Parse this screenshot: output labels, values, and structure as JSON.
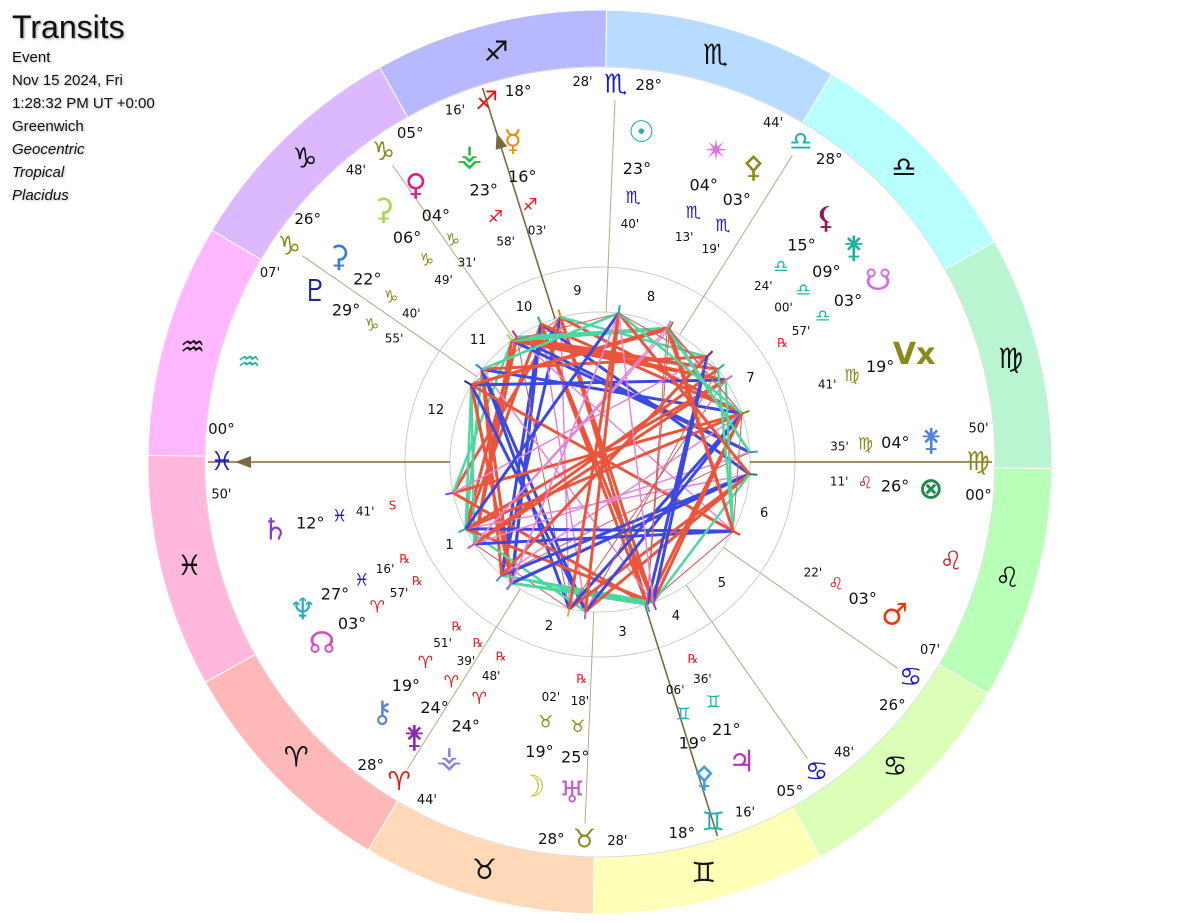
{
  "header": {
    "title": "Transits",
    "lines": [
      "Event",
      "Nov 15 2024, Fri",
      "1:28:32 PM UT +0:00",
      "Greenwich"
    ],
    "italic_lines": [
      "Geocentric",
      "Tropical",
      "Placidus"
    ]
  },
  "signs": [
    {
      "glyph": "♈︎",
      "band_color": "#ffb8b8",
      "color": "#e01818"
    },
    {
      "glyph": "♉︎",
      "band_color": "#ffd9b8",
      "color": "#8a8a1a"
    },
    {
      "glyph": "♊︎",
      "band_color": "#ffffb8",
      "color": "#20b0b0"
    },
    {
      "glyph": "♋︎",
      "band_color": "#dcffb8",
      "color": "#1a1ad0"
    },
    {
      "glyph": "♌︎",
      "band_color": "#b8ffb8",
      "color": "#e01818"
    },
    {
      "glyph": "♍︎",
      "band_color": "#b8f5d0",
      "color": "#8a8a1a"
    },
    {
      "glyph": "♎︎",
      "band_color": "#b8ffff",
      "color": "#20b0b0"
    },
    {
      "glyph": "♏︎",
      "band_color": "#b8dcff",
      "color": "#1a1ad0"
    },
    {
      "glyph": "♐︎",
      "band_color": "#b8b8ff",
      "color": "#e01818"
    },
    {
      "glyph": "♑︎",
      "band_color": "#dcb8ff",
      "color": "#8a8a1a"
    },
    {
      "glyph": "♒︎",
      "band_color": "#ffb8ff",
      "color": "#20b0b0"
    },
    {
      "glyph": "♓︎",
      "band_color": "#ffb8dc",
      "color": "#1a1ad0"
    }
  ],
  "houses": {
    "numbers": [
      "1",
      "2",
      "3",
      "4",
      "5",
      "6",
      "7",
      "8",
      "9",
      "10",
      "11",
      "12"
    ],
    "cusps": [
      {
        "deg": "00°",
        "sign": "♓︎",
        "min": "50'"
      },
      {
        "deg": "28°",
        "sign": "♈︎",
        "min": "44'"
      },
      {
        "deg": "28°",
        "sign": "♉︎",
        "min": "28'"
      },
      {
        "deg": "18°",
        "sign": "♊︎",
        "min": "16'"
      },
      {
        "deg": "05°",
        "sign": "♋︎",
        "min": "48'"
      },
      {
        "deg": "26°",
        "sign": "♋︎",
        "min": "07'"
      },
      {
        "deg": "00°",
        "sign": "♍︎",
        "min": "50'"
      },
      {
        "deg": "28°",
        "sign": "♎︎",
        "min": "44'"
      },
      {
        "deg": "28°",
        "sign": "♏︎",
        "min": "28'"
      },
      {
        "deg": "18°",
        "sign": "♐︎",
        "min": "16'"
      },
      {
        "deg": "05°",
        "sign": "♑︎",
        "min": "48'"
      },
      {
        "deg": "26°",
        "sign": "♑︎",
        "min": "07'"
      }
    ]
  },
  "intercepted": [
    {
      "glyph": "♒︎",
      "color": "#20b0b0"
    },
    {
      "glyph": "♌︎",
      "color": "#e01818"
    }
  ],
  "bodies": [
    {
      "glyph": "☿︎",
      "color": "#f08c00",
      "deg": "16°",
      "sign": "♐︎",
      "min": "03'"
    },
    {
      "glyph": "⚶︎",
      "color": "#20c040",
      "deg": "23°",
      "sign": "♐︎",
      "min": "58'"
    },
    {
      "glyph": "♀︎",
      "color": "#e0208a",
      "deg": "04°",
      "sign": "♑︎",
      "min": "31'"
    },
    {
      "glyph": "⚳︎",
      "color": "#a8d848",
      "deg": "06°",
      "sign": "♑︎",
      "min": "49'"
    },
    {
      "glyph": "⚳︎",
      "color": "#3a7ad8",
      "deg": "22°",
      "sign": "♑︎",
      "min": "40'"
    },
    {
      "glyph": "♇︎",
      "color": "#1a2a8a",
      "deg": "29°",
      "sign": "♑︎",
      "min": "55'"
    },
    {
      "glyph": "♄︎",
      "color": "#8a3ad8",
      "deg": "12°",
      "sign": "♓︎",
      "min": "41'",
      "station": "S"
    },
    {
      "glyph": "♆︎",
      "color": "#20b0c0",
      "deg": "27°",
      "sign": "♓︎",
      "min": "16'",
      "retro": "℞"
    },
    {
      "glyph": "☊︎",
      "color": "#d050c8",
      "deg": "03°",
      "sign": "♈︎",
      "min": "57'",
      "retro": "℞"
    },
    {
      "glyph": "⚷︎",
      "color": "#6080e0",
      "deg": "19°",
      "sign": "♈︎",
      "min": "51'",
      "retro": "℞"
    },
    {
      "glyph": "⚵︎",
      "color": "#8a2ab0",
      "deg": "24°",
      "sign": "♈︎",
      "min": "39'",
      "retro": "℞"
    },
    {
      "glyph": "⚶︎",
      "color": "#8a80e0",
      "deg": "24°",
      "sign": "♈︎",
      "min": "48'",
      "retro": "℞"
    },
    {
      "glyph": "☽︎",
      "color": "#c8c020",
      "deg": "19°",
      "sign": "♉︎",
      "min": "02'"
    },
    {
      "glyph": "♅︎",
      "color": "#c060d0",
      "deg": "25°",
      "sign": "♉︎",
      "min": "18'",
      "retro": "℞"
    },
    {
      "glyph": "⚴︎",
      "color": "#40a0e0",
      "deg": "19°",
      "sign": "♊︎",
      "min": "06'"
    },
    {
      "glyph": "♃︎",
      "color": "#c030c0",
      "deg": "21°",
      "sign": "♊︎",
      "min": "36'",
      "retro": "℞"
    },
    {
      "glyph": "♂︎",
      "color": "#e83a10",
      "deg": "03°",
      "sign": "♌︎",
      "min": "22'"
    },
    {
      "glyph": "⊗",
      "color": "#208a50",
      "deg": "26°",
      "sign": "♌︎",
      "min": "11'"
    },
    {
      "glyph": "⚵︎",
      "color": "#5080e0",
      "deg": "04°",
      "sign": "♍︎",
      "min": "35'"
    },
    {
      "glyph": "Vx",
      "color": "#8a8a1a",
      "deg": "19°",
      "sign": "♍︎",
      "min": "41'"
    },
    {
      "glyph": "☋︎",
      "color": "#d070e0",
      "deg": "03°",
      "sign": "♎︎",
      "min": "57'",
      "retro": "℞"
    },
    {
      "glyph": "⚵︎",
      "color": "#20b0a0",
      "deg": "09°",
      "sign": "♎︎",
      "min": "00'"
    },
    {
      "glyph": "⚸︎",
      "color": "#8a1a5a",
      "deg": "15°",
      "sign": "♎︎",
      "min": "24'"
    },
    {
      "glyph": "⚴︎",
      "color": "#8a8a1a",
      "deg": "03°",
      "sign": "♏︎",
      "min": "19'"
    },
    {
      "glyph": "✴︎",
      "color": "#e070e0",
      "deg": "04°",
      "sign": "♏︎",
      "min": "13'"
    },
    {
      "glyph": "☉︎",
      "color": "#20b0b0",
      "deg": "23°",
      "sign": "♏︎",
      "min": "40'"
    }
  ]
}
